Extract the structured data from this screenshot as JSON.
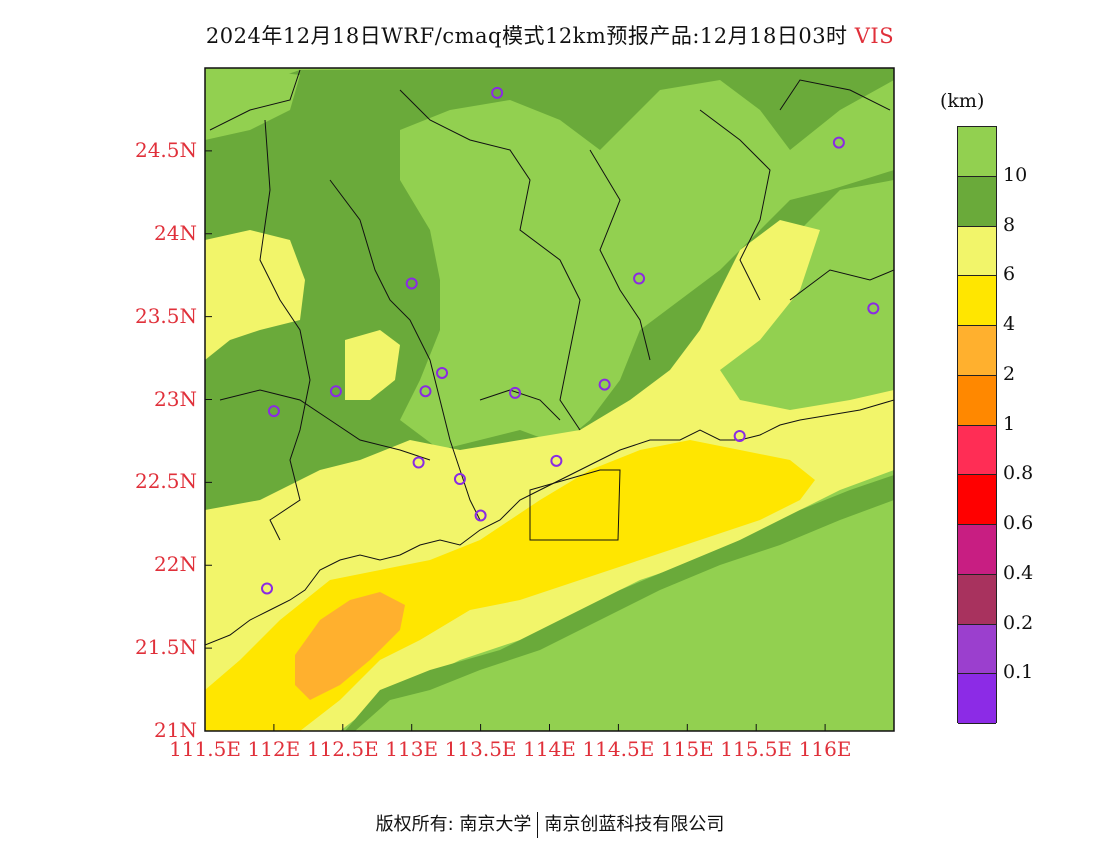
{
  "title": {
    "main": "2024年12月18日WRF/cmaq模式12km预报产品:12月18日03时",
    "variable": "VIS"
  },
  "axes": {
    "y_labels": [
      "24.5N",
      "24N",
      "23.5N",
      "23N",
      "22.5N",
      "22N",
      "21.5N",
      "21N"
    ],
    "y_values": [
      24.5,
      24,
      23.5,
      23,
      22.5,
      22,
      21.5,
      21
    ],
    "x_labels": [
      "111.5E",
      "112E",
      "112.5E",
      "113E",
      "113.5E",
      "114E",
      "114.5E",
      "115E",
      "115.5E",
      "116E"
    ],
    "x_values": [
      111.5,
      112,
      112.5,
      113,
      113.5,
      114,
      114.5,
      115,
      115.5,
      116
    ],
    "lon_range": [
      111.5,
      116.5
    ],
    "lat_range": [
      21,
      25
    ]
  },
  "colorbar": {
    "unit": "(km)",
    "labels": [
      "10",
      "8",
      "6",
      "4",
      "2",
      "1",
      "0.8",
      "0.6",
      "0.4",
      "0.2",
      "0.1"
    ],
    "colors": [
      "#92d050",
      "#6aaa3a",
      "#f2f56a",
      "#ffe600",
      "#ffb02e",
      "#ff8800",
      "#ff2d55",
      "#ff0000",
      "#c81e82",
      "#a8325e",
      "#9b3fce",
      "#8c2be6"
    ]
  },
  "map_colors": {
    "vis_gt10": "#92d050",
    "vis_8_10": "#6aaa3a",
    "vis_6_8": "#f2f56a",
    "vis_4_6": "#ffe600",
    "vis_2_4": "#ffb02e",
    "station": "#8a2be2"
  },
  "stations": [
    {
      "lon": 113.62,
      "lat": 24.85
    },
    {
      "lon": 116.1,
      "lat": 24.55
    },
    {
      "lon": 113.0,
      "lat": 23.7
    },
    {
      "lon": 114.65,
      "lat": 23.73
    },
    {
      "lon": 116.35,
      "lat": 23.55
    },
    {
      "lon": 113.22,
      "lat": 23.16
    },
    {
      "lon": 113.1,
      "lat": 23.05
    },
    {
      "lon": 112.45,
      "lat": 23.05
    },
    {
      "lon": 112.0,
      "lat": 22.93
    },
    {
      "lon": 113.75,
      "lat": 23.04
    },
    {
      "lon": 114.4,
      "lat": 23.09
    },
    {
      "lon": 113.05,
      "lat": 22.62
    },
    {
      "lon": 113.35,
      "lat": 22.52
    },
    {
      "lon": 114.05,
      "lat": 22.63
    },
    {
      "lon": 113.5,
      "lat": 22.3
    },
    {
      "lon": 115.38,
      "lat": 22.78
    },
    {
      "lon": 111.95,
      "lat": 21.86
    }
  ],
  "footer": {
    "left": "版权所有: 南京大学",
    "right": "南京创蓝科技有限公司"
  }
}
